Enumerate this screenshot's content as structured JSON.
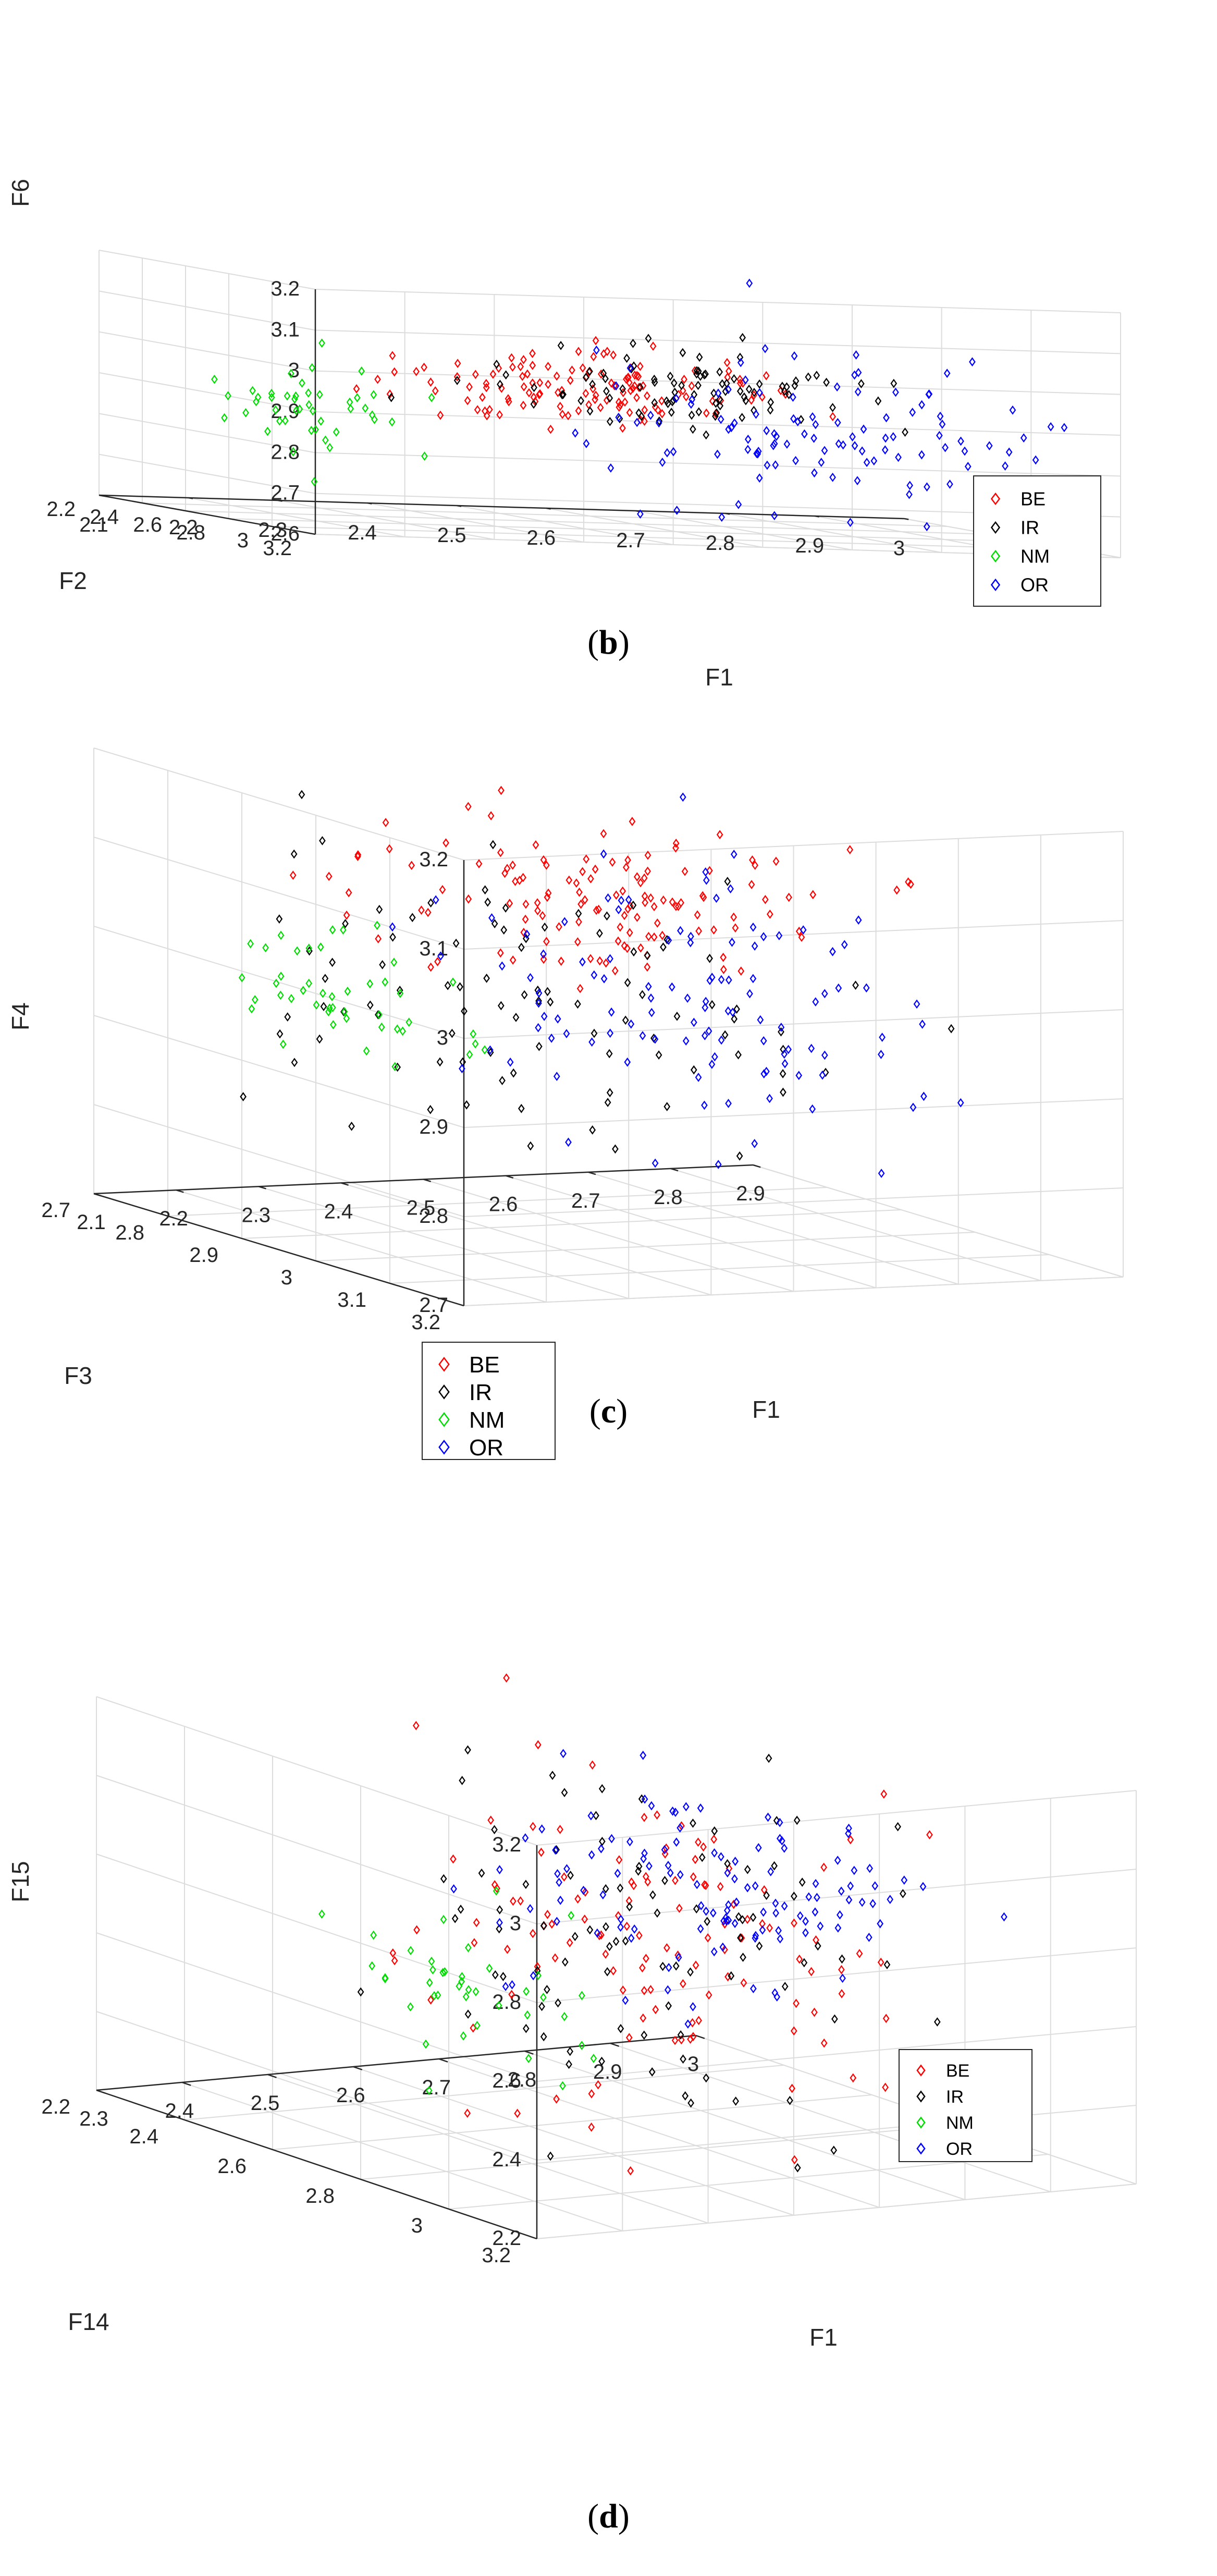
{
  "figure": {
    "colors": {
      "BE": "#ff0000",
      "IR": "#000000",
      "NM": "#00dd00",
      "OR": "#0000ff"
    },
    "legend_entries": [
      "BE",
      "IR",
      "NM",
      "OR"
    ]
  },
  "chart_data": [
    {
      "type": "scatter",
      "caption_letter": "b",
      "caption_open": "(",
      "caption_close": ")",
      "xlabel": "F1",
      "ylabel": "F2",
      "zlabel": "F6",
      "xlim": [
        2.1,
        3.0
      ],
      "ylim": [
        2.2,
        3.2
      ],
      "zlim": [
        2.6,
        3.2
      ],
      "xticks": [
        "2.1",
        "2.2",
        "2.3",
        "2.4",
        "2.5",
        "2.6",
        "2.7",
        "2.8",
        "2.9",
        "3"
      ],
      "yticks": [
        "2.2",
        "2.4",
        "2.6",
        "2.8",
        "3",
        "3.2"
      ],
      "zticks": [
        "2.6",
        "2.7",
        "2.8",
        "2.9",
        "3",
        "3.1",
        "3.2"
      ],
      "legend_position": "bottom-right",
      "series": [
        {
          "name": "BE",
          "center": [
            2.46,
            2.9,
            2.95
          ],
          "spread": [
            0.1,
            0.15,
            0.04
          ],
          "count": 130
        },
        {
          "name": "IR",
          "center": [
            2.58,
            2.98,
            2.97
          ],
          "spread": [
            0.1,
            0.14,
            0.05
          ],
          "count": 95
        },
        {
          "name": "NM",
          "center": [
            2.18,
            2.85,
            2.87
          ],
          "spread": [
            0.035,
            0.15,
            0.06
          ],
          "count": 45
        },
        {
          "name": "OR",
          "center": [
            2.75,
            2.75,
            2.84
          ],
          "spread": [
            0.12,
            0.2,
            0.09
          ],
          "count": 110
        }
      ]
    },
    {
      "type": "scatter",
      "caption_letter": "c",
      "caption_open": "(",
      "caption_close": ")",
      "xlabel": "F1",
      "ylabel": "F3",
      "zlabel": "F4",
      "xlim": [
        2.1,
        2.9
      ],
      "ylim": [
        2.7,
        3.2
      ],
      "zlim": [
        2.7,
        3.2
      ],
      "xticks": [
        "2.1",
        "2.2",
        "2.3",
        "2.4",
        "2.5",
        "2.6",
        "2.7",
        "2.8",
        "2.9"
      ],
      "yticks": [
        "2.7",
        "2.8",
        "2.9",
        "3",
        "3.1",
        "3.2"
      ],
      "zticks": [
        "2.7",
        "2.8",
        "2.9",
        "3",
        "3.1",
        "3.2"
      ],
      "legend_position": "bottom-left",
      "series": [
        {
          "name": "BE",
          "center": [
            2.45,
            3.0,
            3.09
          ],
          "spread": [
            0.12,
            0.09,
            0.04
          ],
          "count": 130
        },
        {
          "name": "IR",
          "center": [
            2.42,
            2.96,
            2.97
          ],
          "spread": [
            0.13,
            0.1,
            0.08
          ],
          "count": 95
        },
        {
          "name": "NM",
          "center": [
            2.15,
            2.98,
            3.0
          ],
          "spread": [
            0.03,
            0.08,
            0.04
          ],
          "count": 45
        },
        {
          "name": "OR",
          "center": [
            2.68,
            2.86,
            2.93
          ],
          "spread": [
            0.13,
            0.09,
            0.08
          ],
          "count": 110
        }
      ]
    },
    {
      "type": "scatter",
      "caption_letter": "d",
      "caption_open": "(",
      "caption_close": ")",
      "xlabel": "F1",
      "ylabel": "F14",
      "zlabel": "F15",
      "xlim": [
        2.3,
        3.0
      ],
      "ylim": [
        2.2,
        3.2
      ],
      "zlim": [
        2.2,
        3.2
      ],
      "xticks": [
        "2.3",
        "2.4",
        "2.5",
        "2.6",
        "2.7",
        "2.8",
        "2.9",
        "3"
      ],
      "yticks": [
        "2.2",
        "2.4",
        "2.6",
        "2.8",
        "3",
        "3.2"
      ],
      "zticks": [
        "2.2",
        "2.4",
        "2.6",
        "2.8",
        "3",
        "3.2"
      ],
      "legend_position": "bottom-right",
      "series": [
        {
          "name": "BE",
          "center": [
            2.62,
            2.85,
            2.75
          ],
          "spread": [
            0.12,
            0.18,
            0.2
          ],
          "count": 120
        },
        {
          "name": "IR",
          "center": [
            2.6,
            2.85,
            2.75
          ],
          "spread": [
            0.12,
            0.15,
            0.2
          ],
          "count": 95
        },
        {
          "name": "NM",
          "center": [
            2.34,
            2.95,
            2.75
          ],
          "spread": [
            0.03,
            0.12,
            0.1
          ],
          "count": 40
        },
        {
          "name": "OR",
          "center": [
            2.72,
            2.8,
            2.85
          ],
          "spread": [
            0.12,
            0.15,
            0.12
          ],
          "count": 120
        }
      ]
    }
  ]
}
